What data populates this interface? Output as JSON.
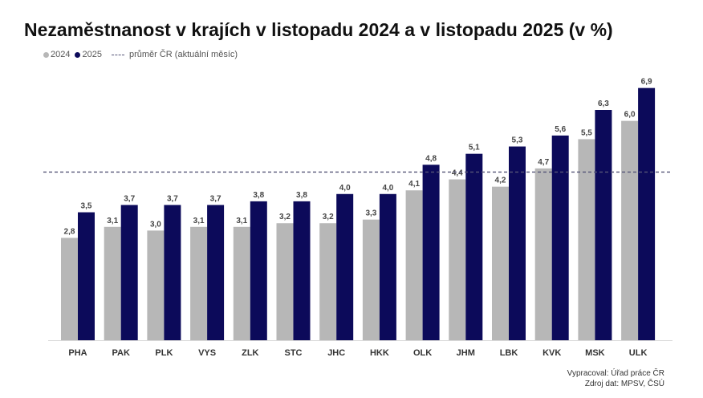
{
  "title": "Nezaměstnanost v krajích v listopadu 2024 a v listopadu 2025 (v %)",
  "legend": {
    "series_2024": "2024",
    "series_2025": "2025",
    "average": "průměr ČR (aktuální měsíc)"
  },
  "colors": {
    "series_2024": "#b7b7b7",
    "series_2025": "#0c0a5a",
    "average_line": "#555577"
  },
  "chart_data": {
    "type": "bar",
    "categories": [
      "PHA",
      "PAK",
      "PLK",
      "VYS",
      "ZLK",
      "STC",
      "JHC",
      "HKK",
      "OLK",
      "JHM",
      "LBK",
      "KVK",
      "MSK",
      "ULK"
    ],
    "series": [
      {
        "name": "2024",
        "values": [
          2.8,
          3.1,
          3.0,
          3.1,
          3.1,
          3.2,
          3.2,
          3.3,
          4.1,
          4.4,
          4.2,
          4.7,
          5.5,
          6.0
        ],
        "labels": [
          "2,8",
          "3,1",
          "3,0",
          "3,1",
          "3,1",
          "3,2",
          "3,2",
          "3,3",
          "4,1",
          "4,4",
          "4,2",
          "4,7",
          "5,5",
          "6,0"
        ]
      },
      {
        "name": "2025",
        "values": [
          3.5,
          3.7,
          3.7,
          3.7,
          3.8,
          3.8,
          4.0,
          4.0,
          4.8,
          5.1,
          5.3,
          5.6,
          6.3,
          6.9
        ],
        "labels": [
          "3,5",
          "3,7",
          "3,7",
          "3,7",
          "3,8",
          "3,8",
          "4,0",
          "4,0",
          "4,8",
          "5,1",
          "5,3",
          "5,6",
          "6,3",
          "6,9"
        ]
      }
    ],
    "reference_line": {
      "name": "průměr ČR (aktuální měsíc)",
      "value": 4.6,
      "style": "dashed"
    },
    "ylim": [
      0,
      7.2
    ],
    "grid": false,
    "legend_position": "top-left"
  },
  "footer": {
    "prepared_by": "Vypracoval: Úřad práce ČR",
    "source": "Zdroj dat: MPSV, ČSÚ"
  }
}
